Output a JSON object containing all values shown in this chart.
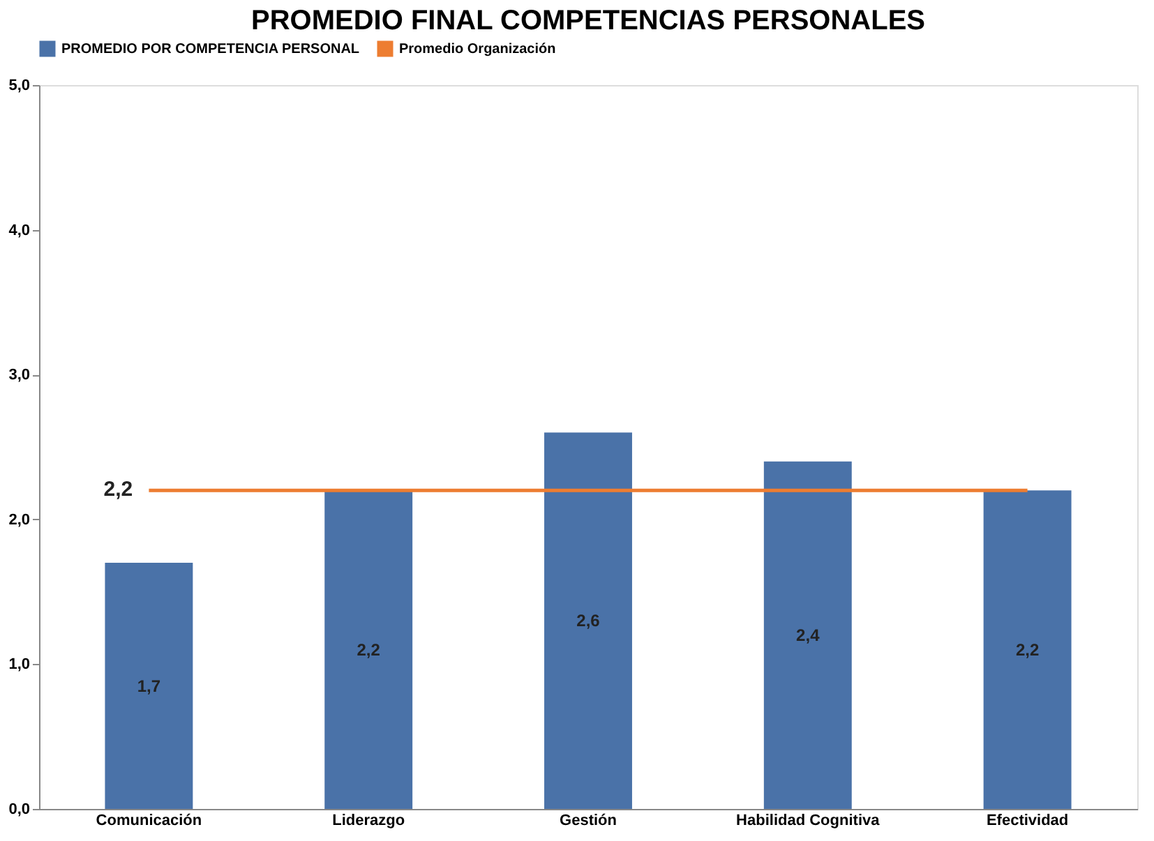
{
  "chart_data": {
    "type": "bar",
    "title": "PROMEDIO FINAL COMPETENCIAS PERSONALES",
    "categories": [
      "Comunicación",
      "Liderazgo",
      "Gestión",
      "Habilidad Cognitiva",
      "Efectividad"
    ],
    "series": [
      {
        "name": "PROMEDIO POR COMPETENCIA PERSONAL",
        "color": "#4a72a8",
        "values": [
          1.7,
          2.2,
          2.6,
          2.4,
          2.2
        ],
        "value_labels": [
          "1,7",
          "2,2",
          "2,6",
          "2,4",
          "2,2"
        ]
      },
      {
        "name": "Promedio Organización",
        "type": "line",
        "color": "#ed7d31",
        "values": [
          2.2,
          2.2,
          2.2,
          2.2,
          2.2
        ],
        "value_labels": [
          "2,2",
          null,
          null,
          null,
          null
        ]
      }
    ],
    "ylim": [
      0,
      5
    ],
    "yticks": [
      {
        "value": 0,
        "label": "0,0"
      },
      {
        "value": 1,
        "label": "1,0"
      },
      {
        "value": 2,
        "label": "2,0"
      },
      {
        "value": 3,
        "label": "3,0"
      },
      {
        "value": 4,
        "label": "4,0"
      },
      {
        "value": 5,
        "label": "5,0"
      }
    ],
    "grid": false,
    "legend": "top"
  }
}
